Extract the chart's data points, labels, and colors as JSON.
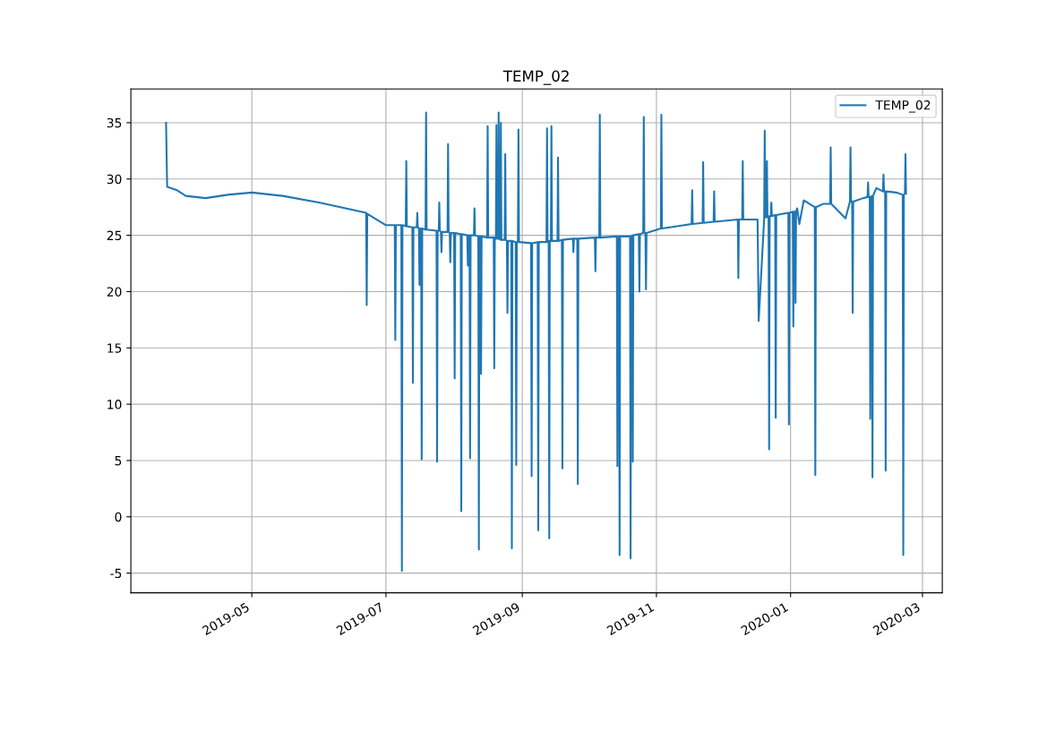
{
  "chart_data": {
    "type": "line",
    "title": "TEMP_02",
    "xlim": [
      "2019-03-07",
      "2020-03-10"
    ],
    "xticks": [
      {
        "value": "2019-05-01",
        "label": "2019-05"
      },
      {
        "value": "2019-07-01",
        "label": "2019-07"
      },
      {
        "value": "2019-09-01",
        "label": "2019-09"
      },
      {
        "value": "2019-11-01",
        "label": "2019-11"
      },
      {
        "value": "2020-01-01",
        "label": "2020-01"
      },
      {
        "value": "2020-03-01",
        "label": "2020-03"
      }
    ],
    "ylim": [
      -6.75,
      38
    ],
    "yticks": [
      -5,
      0,
      5,
      10,
      15,
      20,
      25,
      30,
      35
    ],
    "grid": true,
    "legend": "top right",
    "series": [
      {
        "name": "TEMP_02",
        "color": "#1f77b4",
        "x": [
          "2019-03-23",
          "2019-03-23T12:00",
          "2019-03-28",
          "2019-04-01",
          "2019-04-10",
          "2019-04-20",
          "2019-05-01",
          "2019-05-15",
          "2019-06-01",
          "2019-06-15",
          "2019-06-22",
          "2019-06-22T06:00",
          "2019-06-22T12:00",
          "2019-07-01",
          "2019-07-05",
          "2019-07-05T06:00",
          "2019-07-05T12:00",
          "2019-07-08",
          "2019-07-08T06:00",
          "2019-07-08T12:00",
          "2019-07-10",
          "2019-07-10T06:00",
          "2019-07-10T12:00",
          "2019-07-13",
          "2019-07-13T06:00",
          "2019-07-13T12:00",
          "2019-07-15",
          "2019-07-15T06:00",
          "2019-07-15T12:00",
          "2019-07-16",
          "2019-07-16T06:00",
          "2019-07-16T12:00",
          "2019-07-17",
          "2019-07-17T06:00",
          "2019-07-17T12:00",
          "2019-07-19",
          "2019-07-19T06:00",
          "2019-07-19T12:00",
          "2019-07-24",
          "2019-07-24T06:00",
          "2019-07-24T12:00",
          "2019-07-25",
          "2019-07-25T06:00",
          "2019-07-25T12:00",
          "2019-07-26",
          "2019-07-26T06:00",
          "2019-07-26T12:00",
          "2019-07-29",
          "2019-07-29T06:00",
          "2019-07-29T12:00",
          "2019-07-30",
          "2019-07-30T06:00",
          "2019-07-30T12:00",
          "2019-08-01",
          "2019-08-01T06:00",
          "2019-08-01T12:00",
          "2019-08-04",
          "2019-08-04T06:00",
          "2019-08-04T12:00",
          "2019-08-07",
          "2019-08-07T06:00",
          "2019-08-07T12:00",
          "2019-08-08",
          "2019-08-08T06:00",
          "2019-08-08T12:00",
          "2019-08-10",
          "2019-08-10T06:00",
          "2019-08-10T12:00",
          "2019-08-12",
          "2019-08-12T06:00",
          "2019-08-12T12:00",
          "2019-08-13",
          "2019-08-13T06:00",
          "2019-08-13T12:00",
          "2019-08-16",
          "2019-08-16T06:00",
          "2019-08-16T12:00",
          "2019-08-19",
          "2019-08-19T06:00",
          "2019-08-19T12:00",
          "2019-08-20",
          "2019-08-20T06:00",
          "2019-08-20T12:00",
          "2019-08-21",
          "2019-08-21T06:00",
          "2019-08-21T12:00",
          "2019-08-22",
          "2019-08-22T06:00",
          "2019-08-22T12:00",
          "2019-08-24",
          "2019-08-24T06:00",
          "2019-08-24T12:00",
          "2019-08-25",
          "2019-08-25T06:00",
          "2019-08-25T12:00",
          "2019-08-27",
          "2019-08-27T06:00",
          "2019-08-27T12:00",
          "2019-08-29",
          "2019-08-29T06:00",
          "2019-08-29T12:00",
          "2019-08-30",
          "2019-08-30T06:00",
          "2019-08-30T12:00",
          "2019-09-05",
          "2019-09-05T06:00",
          "2019-09-05T12:00",
          "2019-09-08",
          "2019-09-08T06:00",
          "2019-09-08T12:00",
          "2019-09-12",
          "2019-09-12T06:00",
          "2019-09-12T12:00",
          "2019-09-13",
          "2019-09-13T06:00",
          "2019-09-13T12:00",
          "2019-09-14",
          "2019-09-14T06:00",
          "2019-09-14T12:00",
          "2019-09-17",
          "2019-09-17T06:00",
          "2019-09-17T12:00",
          "2019-09-19",
          "2019-09-19T06:00",
          "2019-09-19T12:00",
          "2019-09-24",
          "2019-09-24T06:00",
          "2019-09-24T12:00",
          "2019-09-26",
          "2019-09-26T06:00",
          "2019-09-26T12:00",
          "2019-10-04",
          "2019-10-04T06:00",
          "2019-10-04T12:00",
          "2019-10-06",
          "2019-10-06T06:00",
          "2019-10-06T12:00",
          "2019-10-14",
          "2019-10-14T06:00",
          "2019-10-14T12:00",
          "2019-10-15",
          "2019-10-15T06:00",
          "2019-10-15T12:00",
          "2019-10-20",
          "2019-10-20T06:00",
          "2019-10-20T12:00",
          "2019-10-21",
          "2019-10-21T06:00",
          "2019-10-21T12:00",
          "2019-10-24",
          "2019-10-24T06:00",
          "2019-10-24T12:00",
          "2019-10-26",
          "2019-10-26T06:00",
          "2019-10-26T12:00",
          "2019-10-27",
          "2019-10-27T06:00",
          "2019-10-27T12:00",
          "2019-11-03",
          "2019-11-03T06:00",
          "2019-11-03T12:00",
          "2019-11-17",
          "2019-11-17T06:00",
          "2019-11-17T12:00",
          "2019-11-22",
          "2019-11-22T06:00",
          "2019-11-22T12:00",
          "2019-11-27",
          "2019-11-27T06:00",
          "2019-11-27T12:00",
          "2019-12-08",
          "2019-12-08T06:00",
          "2019-12-08T12:00",
          "2019-12-10",
          "2019-12-10T06:00",
          "2019-12-10T12:00",
          "2019-12-17",
          "2019-12-17T12:00",
          "2019-12-20",
          "2019-12-20T06:00",
          "2019-12-20T12:00",
          "2019-12-21",
          "2019-12-21T06:00",
          "2019-12-21T12:00",
          "2019-12-22",
          "2019-12-22T06:00",
          "2019-12-22T12:00",
          "2019-12-23",
          "2019-12-23T06:00",
          "2019-12-23T12:00",
          "2019-12-25",
          "2019-12-25T06:00",
          "2019-12-25T12:00",
          "2019-12-31",
          "2019-12-31T06:00",
          "2019-12-31T12:00",
          "2020-01-02",
          "2020-01-02T06:00",
          "2020-01-02T12:00",
          "2020-01-03",
          "2020-01-03T06:00",
          "2020-01-03T12:00",
          "2020-01-04",
          "2020-01-05",
          "2020-01-07",
          "2020-01-12",
          "2020-01-12T06:00",
          "2020-01-12T12:00",
          "2020-01-16",
          "2020-01-19",
          "2020-01-19T06:00",
          "2020-01-19T12:00",
          "2020-01-26",
          "2020-01-28",
          "2020-01-28T06:00",
          "2020-01-28T12:00",
          "2020-01-29",
          "2020-01-29T06:00",
          "2020-01-29T12:00",
          "2020-02-03",
          "2020-02-05",
          "2020-02-05T06:00",
          "2020-02-05T12:00",
          "2020-02-06",
          "2020-02-06T06:00",
          "2020-02-06T12:00",
          "2020-02-07",
          "2020-02-07T06:00",
          "2020-02-07T12:00",
          "2020-02-09",
          "2020-02-12",
          "2020-02-12T06:00",
          "2020-02-12T12:00",
          "2020-02-13",
          "2020-02-13T06:00",
          "2020-02-13T12:00",
          "2020-02-18",
          "2020-02-21",
          "2020-02-21T06:00",
          "2020-02-21T12:00",
          "2020-02-22",
          "2020-02-22T06:00",
          "2020-02-22T12:00"
        ],
        "values": [
          35,
          29.3,
          29.0,
          28.5,
          28.3,
          28.6,
          28.8,
          28.5,
          27.9,
          27.3,
          27.0,
          18.8,
          26.9,
          25.9,
          25.9,
          15.7,
          25.9,
          25.9,
          -4.8,
          25.9,
          25.8,
          31.6,
          25.8,
          25.7,
          11.9,
          25.7,
          25.7,
          27.0,
          25.7,
          25.6,
          20.6,
          25.6,
          25.6,
          5.1,
          25.6,
          25.5,
          35.9,
          25.5,
          25.4,
          4.9,
          25.4,
          25.4,
          27.9,
          25.4,
          25.3,
          23.5,
          25.3,
          25.3,
          33.1,
          25.3,
          25.2,
          22.6,
          25.2,
          25.2,
          12.3,
          25.2,
          25.1,
          0.5,
          25.1,
          25.0,
          22.3,
          25.0,
          25.0,
          5.2,
          25.0,
          25.0,
          27.4,
          25.0,
          24.9,
          -2.9,
          24.9,
          24.9,
          12.7,
          24.9,
          24.8,
          34.7,
          24.8,
          24.8,
          13.2,
          24.8,
          24.7,
          34.8,
          24.7,
          24.7,
          35.9,
          24.7,
          24.6,
          35.0,
          24.6,
          24.6,
          32.2,
          24.6,
          24.5,
          18.1,
          24.5,
          24.5,
          -2.8,
          24.5,
          24.4,
          4.6,
          24.4,
          24.4,
          34.4,
          24.4,
          24.3,
          3.6,
          24.3,
          24.4,
          -1.2,
          24.4,
          24.4,
          34.5,
          24.4,
          24.5,
          -1.9,
          24.5,
          24.5,
          34.7,
          24.5,
          24.5,
          31.9,
          24.5,
          24.6,
          4.3,
          24.6,
          24.7,
          23.5,
          24.7,
          24.7,
          2.9,
          24.7,
          24.8,
          21.8,
          24.8,
          24.8,
          35.7,
          24.8,
          24.9,
          4.5,
          24.9,
          24.9,
          -3.4,
          24.9,
          24.9,
          -3.7,
          24.9,
          25.0,
          4.9,
          25.0,
          25.1,
          20.0,
          25.1,
          25.2,
          35.5,
          25.2,
          25.2,
          20.2,
          25.2,
          25.6,
          35.7,
          25.6,
          26.0,
          29.0,
          26.0,
          26.1,
          31.5,
          26.1,
          26.2,
          28.9,
          26.2,
          26.4,
          21.2,
          26.4,
          26.4,
          31.6,
          26.4,
          26.4,
          17.4,
          26.5,
          34.3,
          26.6,
          26.6,
          31.6,
          26.6,
          26.7,
          6.0,
          26.7,
          26.7,
          27.9,
          26.7,
          26.8,
          8.8,
          26.8,
          27.0,
          8.2,
          27.0,
          27.1,
          16.9,
          27.1,
          27.1,
          19.0,
          27.1,
          27.4,
          26.0,
          28.1,
          27.5,
          3.7,
          27.5,
          27.8,
          27.8,
          32.8,
          27.8,
          26.5,
          28.0,
          32.8,
          28.0,
          28.0,
          18.1,
          28.0,
          28.3,
          28.4,
          29.7,
          28.4,
          28.4,
          8.7,
          28.4,
          28.5,
          3.5,
          28.5,
          29.2,
          28.9,
          30.4,
          28.9,
          28.9,
          4.1,
          28.9,
          28.8,
          28.6,
          -3.4,
          28.6,
          28.7,
          32.2,
          28.7
        ]
      }
    ]
  }
}
